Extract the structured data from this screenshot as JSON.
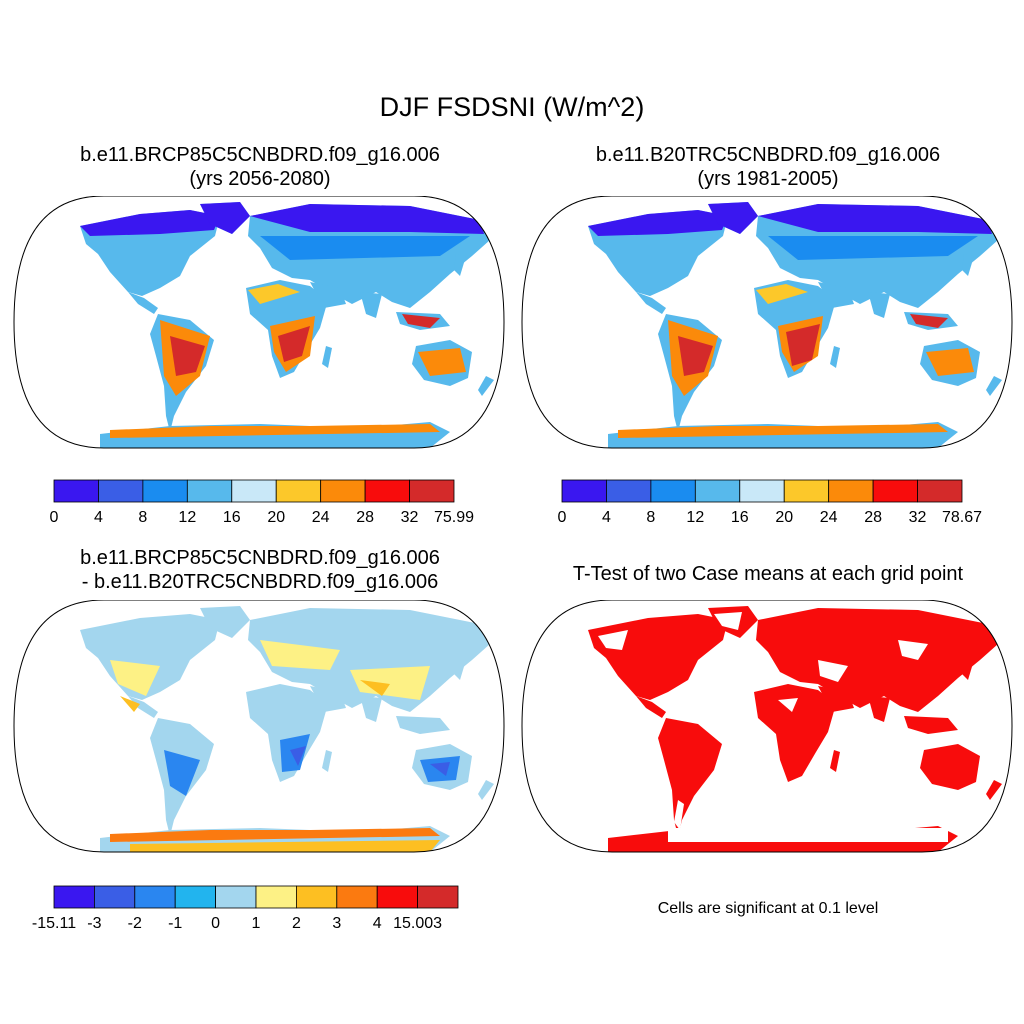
{
  "main_title": "DJF FSDSNI (W/m^2)",
  "panels": [
    {
      "title_line1": "b.e11.BRCP85C5CNBDRD.f09_g16.006",
      "title_line2": "(yrs 2056-2080)",
      "colorbar": {
        "colors": [
          "#3a17f0",
          "#3a5ee6",
          "#1a8cf0",
          "#57b9ec",
          "#c9e8f8",
          "#fcc82a",
          "#fb8a0a",
          "#f80c0c",
          "#d42a2a"
        ],
        "labels": [
          "0",
          "4",
          "8",
          "12",
          "16",
          "20",
          "24",
          "28",
          "32",
          "75.99"
        ]
      }
    },
    {
      "title_line1": "b.e11.B20TRC5CNBDRD.f09_g16.006",
      "title_line2": "(yrs 1981-2005)",
      "colorbar": {
        "colors": [
          "#3a17f0",
          "#3a5ee6",
          "#1a8cf0",
          "#57b9ec",
          "#c9e8f8",
          "#fcc82a",
          "#fb8a0a",
          "#f80c0c",
          "#d42a2a"
        ],
        "labels": [
          "0",
          "4",
          "8",
          "12",
          "16",
          "20",
          "24",
          "28",
          "32",
          "78.67"
        ]
      }
    },
    {
      "title_line1": "b.e11.BRCP85C5CNBDRD.f09_g16.006",
      "title_line2": "- b.e11.B20TRC5CNBDRD.f09_g16.006",
      "colorbar": {
        "colors": [
          "#3a17f0",
          "#3a5ee6",
          "#2a86f0",
          "#22b4ee",
          "#a3d6ee",
          "#fdf185",
          "#fdbf22",
          "#fb7a10",
          "#f80c0c",
          "#d42a2a"
        ],
        "labels": [
          "-15.11",
          "-3",
          "-2",
          "-1",
          "0",
          "1",
          "2",
          "3",
          "4",
          "15.003"
        ]
      }
    },
    {
      "title_line1": "T-Test of two Case means at each grid point",
      "title_line2": "",
      "note": "Cells are significant at 0.1 level"
    }
  ]
}
